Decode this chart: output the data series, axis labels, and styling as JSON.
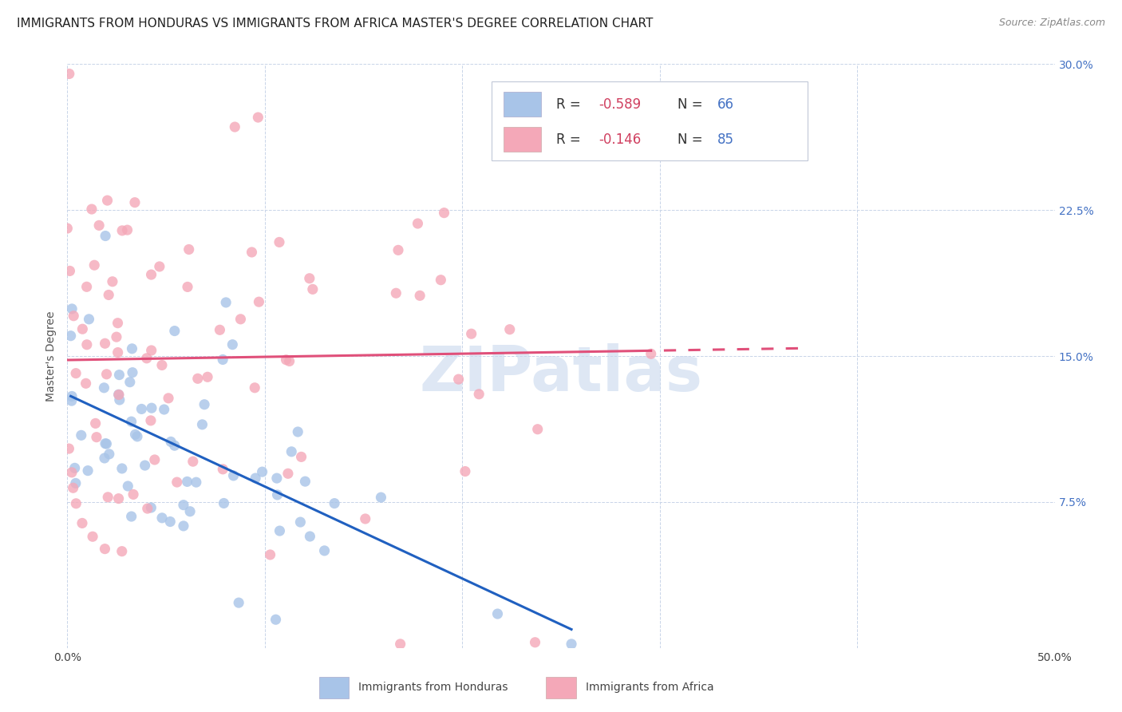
{
  "title": "IMMIGRANTS FROM HONDURAS VS IMMIGRANTS FROM AFRICA MASTER'S DEGREE CORRELATION CHART",
  "source": "Source: ZipAtlas.com",
  "ylabel": "Master's Degree",
  "x_min": 0.0,
  "x_max": 0.5,
  "y_min": 0.0,
  "y_max": 0.3,
  "x_ticks": [
    0.0,
    0.1,
    0.2,
    0.3,
    0.4,
    0.5
  ],
  "y_ticks": [
    0.0,
    0.075,
    0.15,
    0.225,
    0.3
  ],
  "watermark": "ZIPatlas",
  "color_honduras": "#a8c4e8",
  "color_africa": "#f4a8b8",
  "color_line_honduras": "#2060c0",
  "color_line_africa": "#e0507a",
  "background_color": "#ffffff",
  "grid_color": "#c8d4e8",
  "title_fontsize": 11,
  "tick_fontsize": 10,
  "legend_fontsize": 12,
  "R_honduras": -0.589,
  "N_honduras": 66,
  "R_africa": -0.146,
  "N_africa": 85,
  "seed_honduras": 7,
  "seed_africa": 13
}
